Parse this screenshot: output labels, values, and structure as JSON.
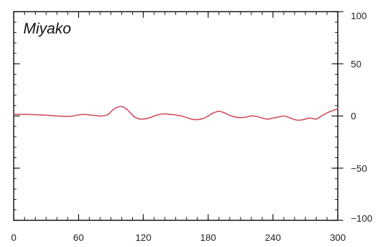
{
  "chart_data": {
    "type": "line",
    "title": "Miyako",
    "xlabel": "",
    "ylabel": "",
    "xlim": [
      0,
      300
    ],
    "ylim": [
      -100,
      100
    ],
    "x_ticks": [
      0,
      60,
      120,
      180,
      240,
      300
    ],
    "x_tick_labels": [
      "0",
      "60",
      "120",
      "180",
      "240",
      "300"
    ],
    "y_ticks": [
      100,
      50,
      0,
      -50,
      -100
    ],
    "y_tick_labels": [
      "100",
      "50",
      "0",
      "−50",
      "−100"
    ],
    "grid": false,
    "line_color": "#d04a5a",
    "series": [
      {
        "x": [
          0,
          10,
          20,
          30,
          40,
          50,
          55,
          60,
          65,
          70,
          75,
          80,
          85,
          88,
          92,
          96,
          100,
          104,
          108,
          112,
          118,
          125,
          130,
          135,
          140,
          145,
          150,
          155,
          160,
          165,
          170,
          175,
          180,
          185,
          190,
          195,
          200,
          205,
          210,
          215,
          220,
          225,
          230,
          235,
          240,
          245,
          250,
          255,
          260,
          265,
          270,
          275,
          280,
          285,
          290,
          295,
          300
        ],
        "values": [
          1.5,
          1.5,
          1.2,
          0.8,
          0,
          -0.5,
          0,
          1,
          1.5,
          1,
          0.5,
          0,
          0.5,
          2,
          6,
          8.5,
          9,
          7,
          3,
          -1,
          -3,
          -2,
          0,
          1.5,
          2,
          1.5,
          1,
          0,
          -1.5,
          -3,
          -3.5,
          -2.5,
          0,
          3,
          4.5,
          3,
          0.5,
          -1,
          -1.5,
          -1,
          0,
          -0.5,
          -2,
          -3,
          -2,
          -1,
          0,
          -1.5,
          -3.5,
          -4,
          -3,
          -2,
          -3,
          0,
          3,
          5,
          7
        ]
      }
    ]
  }
}
